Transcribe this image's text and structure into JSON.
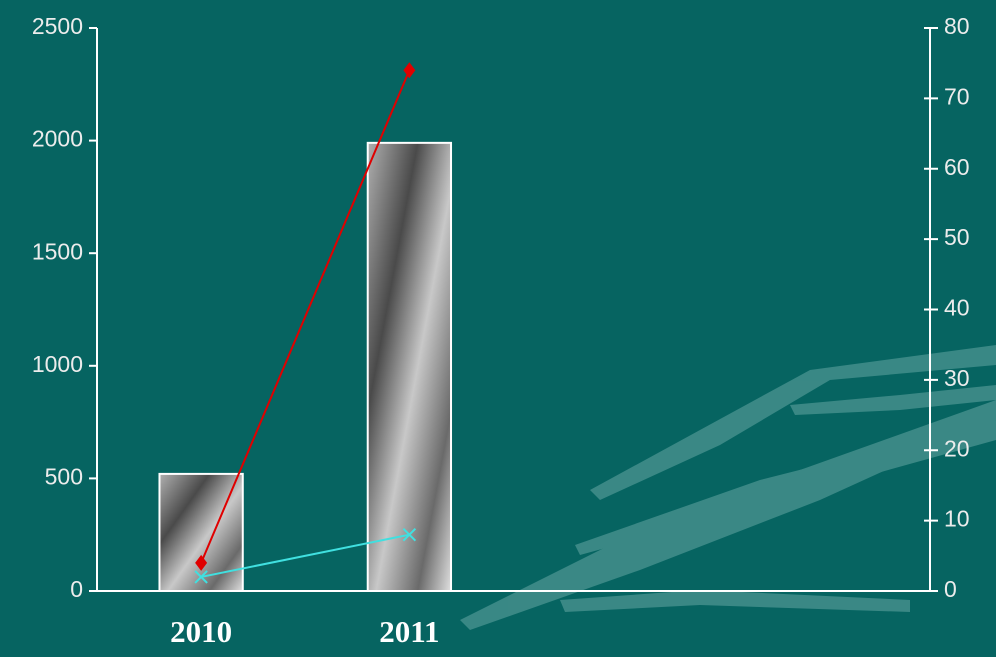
{
  "chart_data": {
    "type": "bar",
    "categories": [
      "2010",
      "2011",
      null,
      null
    ],
    "values": [
      520,
      1990,
      null,
      null
    ],
    "color": "#9a9a9a",
    "series": [
      {
        "color": "#e00000",
        "axis": "y2",
        "marker": "diamond",
        "values": [
          4,
          74,
          null,
          null
        ]
      },
      {
        "color": "#40e0e0",
        "axis": "y2",
        "marker": "x",
        "values": [
          2,
          8,
          null,
          null
        ]
      }
    ],
    "ylim": [
      0,
      2500
    ],
    "yticks": [
      0,
      500,
      1000,
      1500,
      2000,
      2500
    ],
    "y2lim": [
      0,
      80
    ],
    "y2ticks": [
      0,
      10,
      20,
      30,
      40,
      50,
      60,
      70,
      80
    ],
    "grid": false
  }
}
